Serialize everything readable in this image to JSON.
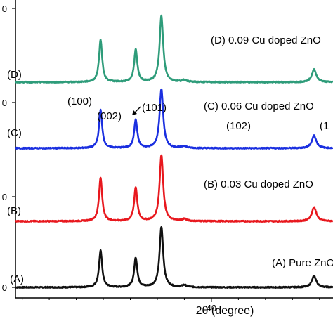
{
  "chart_data": {
    "type": "line",
    "xlabel": "2θ (degree)",
    "xlim": [
      25.5,
      49.0
    ],
    "x_ticks": [
      {
        "value": 40,
        "label": "40"
      }
    ],
    "y_tick_labels": [
      "0",
      "0",
      "0",
      "0"
    ],
    "colors": {
      "D": "#2e9c7a",
      "C": "#1a2fe0",
      "B": "#e8181e",
      "A": "#111111"
    },
    "peaks": [
      {
        "x": 31.8,
        "hkl": "(100)"
      },
      {
        "x": 34.4,
        "hkl": "(002)"
      },
      {
        "x": 36.3,
        "hkl": "(101)"
      },
      {
        "x": 47.6,
        "hkl": "(102)"
      }
    ],
    "series": [
      {
        "id": "A",
        "name": "(A) Pure ZnO",
        "tag": "(A)",
        "peak_heights": [
          52,
          42,
          86,
          16
        ]
      },
      {
        "id": "B",
        "name": "(B) 0.03 Cu doped ZnO",
        "tag": "(B)",
        "peak_heights": [
          62,
          48,
          94,
          20
        ]
      },
      {
        "id": "C",
        "name": "(C) 0.06 Cu doped ZnO",
        "tag": "(C)",
        "peak_heights": [
          54,
          40,
          84,
          18
        ]
      },
      {
        "id": "D",
        "name": "(D) 0.09 Cu doped ZnO",
        "tag": "(D)",
        "peak_heights": [
          60,
          46,
          94,
          18
        ]
      }
    ],
    "annotations": {
      "hkl_labels": [
        "(100)",
        "(002)",
        "(101)",
        "(102)",
        "(1"
      ]
    }
  }
}
